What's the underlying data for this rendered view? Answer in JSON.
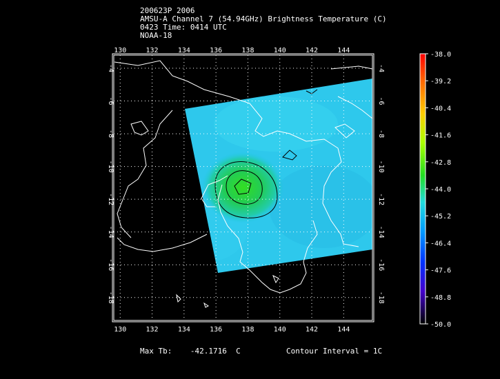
{
  "header": {
    "line1": "200623P 2006",
    "line2": "AMSU-A Channel 7 (54.94GHz) Brightness Temperature (C)",
    "line3": "0423 Time: 0414 UTC",
    "line4": "NOAA-18"
  },
  "map": {
    "lon_ticks": [
      "130",
      "132",
      "134",
      "136",
      "138",
      "140",
      "142",
      "144"
    ],
    "lat_ticks": [
      "-4",
      "-6",
      "-8",
      "-10",
      "-12",
      "-14",
      "-16",
      "-18"
    ],
    "lon_range": [
      129.6,
      145.8
    ],
    "lat_range": [
      -3.2,
      -19.4
    ]
  },
  "colorbar": {
    "labels": [
      "-38.0",
      "-39.2",
      "-40.4",
      "-41.6",
      "-42.8",
      "-44.0",
      "-45.2",
      "-46.4",
      "-47.6",
      "-48.8",
      "-50.0"
    ],
    "min": -50.0,
    "max": -38.0
  },
  "footer": {
    "max_tb_label": "Max Tb:",
    "max_tb_value": "-42.1716",
    "max_tb_unit": "C",
    "contour_label": "Contour Interval = 1C"
  }
}
